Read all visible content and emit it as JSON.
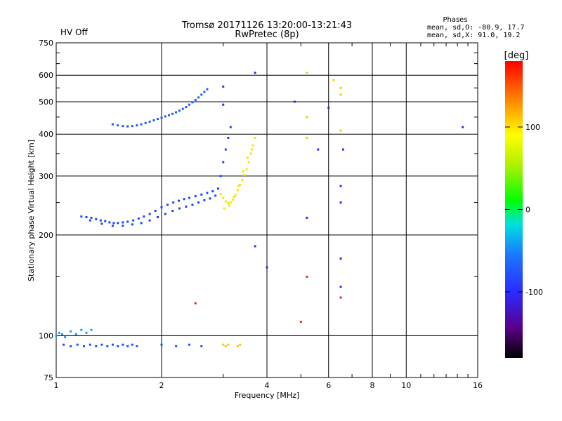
{
  "status": {
    "text": "HV Off",
    "color": "#cc0000"
  },
  "header": {
    "title_line1": "Tromsø 20171126 13:20:00-13:21:43",
    "title_line2": "RwPretec (8p)"
  },
  "phases": {
    "label": "Phases",
    "line_o": "mean, sd,O: -80.9, 17.7",
    "line_x": "mean, sd,X:  91.0, 19.2"
  },
  "chart_data": {
    "type": "scatter",
    "xlabel": "Frequency [MHz]",
    "ylabel": "Stationary phase Virtual Height [km]",
    "xscale": "log",
    "yscale": "log",
    "xlim": [
      1,
      16
    ],
    "ylim": [
      75,
      750
    ],
    "x_ticks": [
      1,
      2,
      4,
      6,
      8,
      10,
      16
    ],
    "x_tick_labels": [
      "1",
      "2",
      "4",
      "6",
      "8",
      "10",
      "16"
    ],
    "y_ticks": [
      75,
      100,
      200,
      300,
      400,
      500,
      600,
      750
    ],
    "y_tick_labels": [
      "75",
      "100",
      "200",
      "300",
      "400",
      "500",
      "600",
      "750"
    ],
    "grid": true,
    "colorbar": {
      "label": "[deg]",
      "range": [
        -180,
        180
      ],
      "ticks": [
        100,
        0,
        -100
      ],
      "tick_labels": [
        "100",
        "0",
        "-100"
      ]
    },
    "series": [
      {
        "name": "",
        "color": "#1a44ff",
        "points": [
          [
            1.18,
            227
          ],
          [
            1.22,
            226
          ],
          [
            1.26,
            225
          ],
          [
            1.3,
            223
          ],
          [
            1.34,
            221
          ],
          [
            1.38,
            220
          ],
          [
            1.42,
            218
          ],
          [
            1.46,
            217
          ],
          [
            1.5,
            217
          ],
          [
            1.55,
            218
          ],
          [
            1.6,
            219
          ],
          [
            1.66,
            221
          ],
          [
            1.72,
            224
          ],
          [
            1.78,
            227
          ],
          [
            1.85,
            231
          ],
          [
            1.92,
            236
          ],
          [
            2.0,
            242
          ],
          [
            2.08,
            246
          ],
          [
            2.16,
            250
          ],
          [
            2.24,
            253
          ],
          [
            2.32,
            256
          ],
          [
            2.4,
            258
          ],
          [
            2.5,
            261
          ],
          [
            2.6,
            264
          ],
          [
            2.7,
            267
          ],
          [
            2.8,
            270
          ],
          [
            1.25,
            221
          ],
          [
            1.35,
            216
          ],
          [
            1.45,
            213
          ],
          [
            1.55,
            213
          ],
          [
            1.65,
            215
          ],
          [
            1.75,
            217
          ],
          [
            1.85,
            221
          ],
          [
            1.95,
            226
          ],
          [
            2.05,
            231
          ],
          [
            2.15,
            236
          ],
          [
            2.25,
            240
          ],
          [
            2.35,
            243
          ],
          [
            2.45,
            246
          ],
          [
            2.55,
            250
          ],
          [
            2.65,
            254
          ],
          [
            2.75,
            257
          ],
          [
            2.85,
            262
          ],
          [
            2.9,
            275
          ],
          [
            2.95,
            300
          ],
          [
            3.0,
            330
          ],
          [
            3.05,
            360
          ],
          [
            3.1,
            390
          ],
          [
            3.15,
            420
          ]
        ]
      },
      {
        "name": "",
        "color": "#1a5aff",
        "points": [
          [
            1.45,
            428
          ],
          [
            1.5,
            425
          ],
          [
            1.55,
            423
          ],
          [
            1.6,
            422
          ],
          [
            1.65,
            423
          ],
          [
            1.7,
            425
          ],
          [
            1.75,
            428
          ],
          [
            1.8,
            432
          ],
          [
            1.85,
            436
          ],
          [
            1.9,
            440
          ],
          [
            1.95,
            444
          ],
          [
            2.0,
            448
          ],
          [
            2.05,
            452
          ],
          [
            2.1,
            456
          ],
          [
            2.15,
            460
          ],
          [
            2.2,
            465
          ],
          [
            2.25,
            470
          ],
          [
            2.3,
            476
          ],
          [
            2.35,
            482
          ],
          [
            2.4,
            490
          ],
          [
            2.45,
            498
          ],
          [
            2.5,
            506
          ],
          [
            2.55,
            515
          ],
          [
            2.6,
            525
          ],
          [
            2.65,
            535
          ],
          [
            2.7,
            545
          ]
        ]
      },
      {
        "name": "",
        "color": "#f2e600",
        "points": [
          [
            2.95,
            265
          ],
          [
            3.0,
            258
          ],
          [
            3.05,
            252
          ],
          [
            3.1,
            249
          ],
          [
            3.15,
            250
          ],
          [
            3.2,
            255
          ],
          [
            3.25,
            263
          ],
          [
            3.3,
            272
          ],
          [
            3.35,
            282
          ],
          [
            3.4,
            292
          ],
          [
            3.45,
            302
          ],
          [
            3.5,
            314
          ],
          [
            3.55,
            330
          ],
          [
            3.6,
            350
          ],
          [
            3.65,
            370
          ],
          [
            3.7,
            390
          ],
          [
            3.02,
            240
          ],
          [
            3.12,
            245
          ],
          [
            3.22,
            260
          ],
          [
            3.32,
            280
          ],
          [
            3.42,
            310
          ],
          [
            3.52,
            340
          ],
          [
            3.62,
            360
          ]
        ]
      },
      {
        "name": "",
        "color": "#1a55ff",
        "points": [
          [
            1.05,
            94
          ],
          [
            1.1,
            93
          ],
          [
            1.15,
            94
          ],
          [
            1.2,
            93
          ],
          [
            1.25,
            94
          ],
          [
            1.3,
            93
          ],
          [
            1.35,
            94
          ],
          [
            1.4,
            93
          ],
          [
            1.45,
            94
          ],
          [
            1.5,
            93
          ],
          [
            1.55,
            94
          ],
          [
            1.6,
            93
          ],
          [
            1.65,
            94
          ],
          [
            1.7,
            93
          ],
          [
            2.0,
            94
          ],
          [
            2.2,
            93
          ],
          [
            2.4,
            94
          ],
          [
            2.6,
            93
          ]
        ]
      },
      {
        "name": "",
        "color": "#1aa0ff",
        "points": [
          [
            1.0,
            100
          ],
          [
            1.02,
            102
          ],
          [
            1.04,
            101
          ],
          [
            1.06,
            99
          ],
          [
            1.1,
            103
          ],
          [
            1.14,
            101
          ],
          [
            1.18,
            104
          ],
          [
            1.22,
            102
          ],
          [
            1.26,
            104
          ]
        ]
      },
      {
        "name": "",
        "color": "#f2d000",
        "points": [
          [
            3.0,
            94
          ],
          [
            3.05,
            93
          ],
          [
            3.1,
            94
          ],
          [
            3.3,
            93
          ],
          [
            3.35,
            94
          ],
          [
            5.2,
            610
          ],
          [
            6.2,
            580
          ],
          [
            6.5,
            550
          ],
          [
            6.5,
            410
          ],
          [
            5.2,
            450
          ],
          [
            5.2,
            390
          ],
          [
            6.5,
            525
          ]
        ]
      },
      {
        "name": "",
        "color": "#2a2aff",
        "points": [
          [
            3.7,
            610
          ],
          [
            3.0,
            555
          ],
          [
            4.8,
            500
          ],
          [
            6.0,
            480
          ],
          [
            5.6,
            360
          ],
          [
            6.6,
            360
          ],
          [
            6.5,
            280
          ],
          [
            6.5,
            250
          ],
          [
            5.2,
            225
          ],
          [
            6.5,
            170
          ],
          [
            6.5,
            140
          ],
          [
            14.5,
            420
          ],
          [
            3.7,
            185
          ],
          [
            4.0,
            160
          ],
          [
            3.0,
            490
          ]
        ]
      },
      {
        "name": "",
        "color": "#e03020",
        "points": [
          [
            2.5,
            125
          ],
          [
            5.2,
            150
          ],
          [
            6.5,
            130
          ],
          [
            5.0,
            110
          ]
        ]
      }
    ]
  }
}
